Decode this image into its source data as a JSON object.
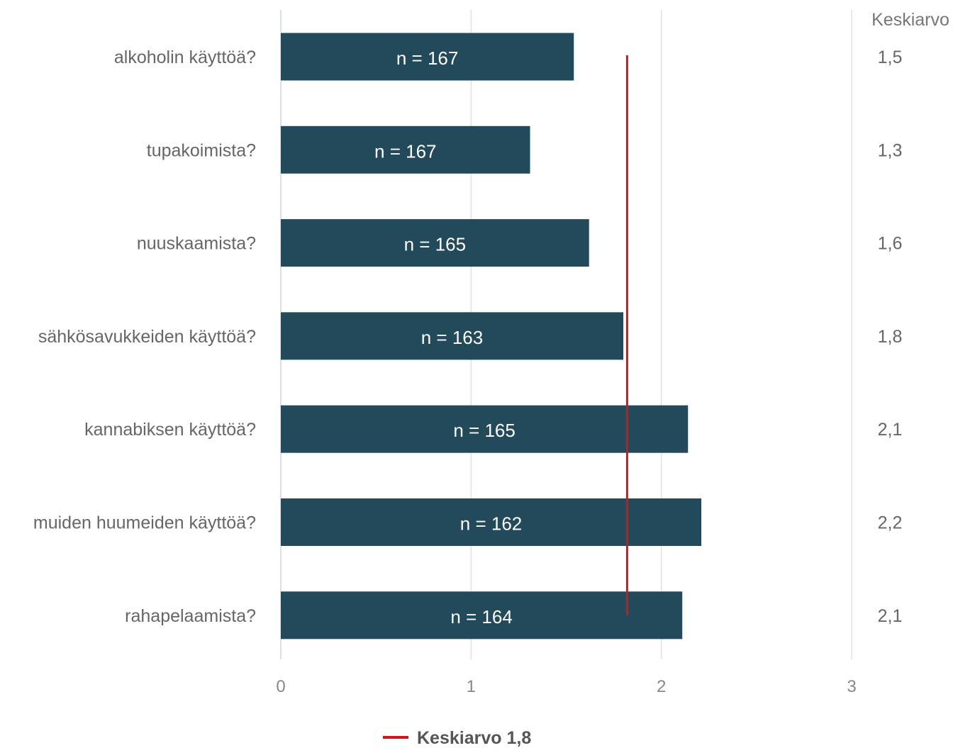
{
  "chart_data": {
    "type": "bar",
    "orientation": "horizontal",
    "categories": [
      "alkoholin käyttöä?",
      "tupakoimista?",
      "nuuskaamista?",
      "sähkösavukkeiden käyttöä?",
      "kannabiksen käyttöä?",
      "muiden huumeiden käyttöä?",
      "rahapelaamista?"
    ],
    "values": [
      1.54,
      1.31,
      1.62,
      1.8,
      2.14,
      2.21,
      2.11
    ],
    "bar_labels": [
      "n = 167",
      "n = 167",
      "n = 165",
      "n = 163",
      "n = 165",
      "n = 162",
      "n = 164"
    ],
    "mean_column_header": "Keskiarvo",
    "mean_labels": [
      "1,5",
      "1,3",
      "1,6",
      "1,8",
      "2,1",
      "2,2",
      "2,1"
    ],
    "reference_line": {
      "value": 1.82,
      "legend_label": "Keskiarvo 1,8",
      "color": "#d0161a"
    },
    "xlim": [
      0,
      3
    ],
    "xticks": [
      0,
      1,
      2,
      3
    ],
    "xtick_labels": [
      "0",
      "1",
      "2",
      "3"
    ],
    "grid": true,
    "legend_position": "bottom",
    "bar_color": "#234a5a"
  }
}
